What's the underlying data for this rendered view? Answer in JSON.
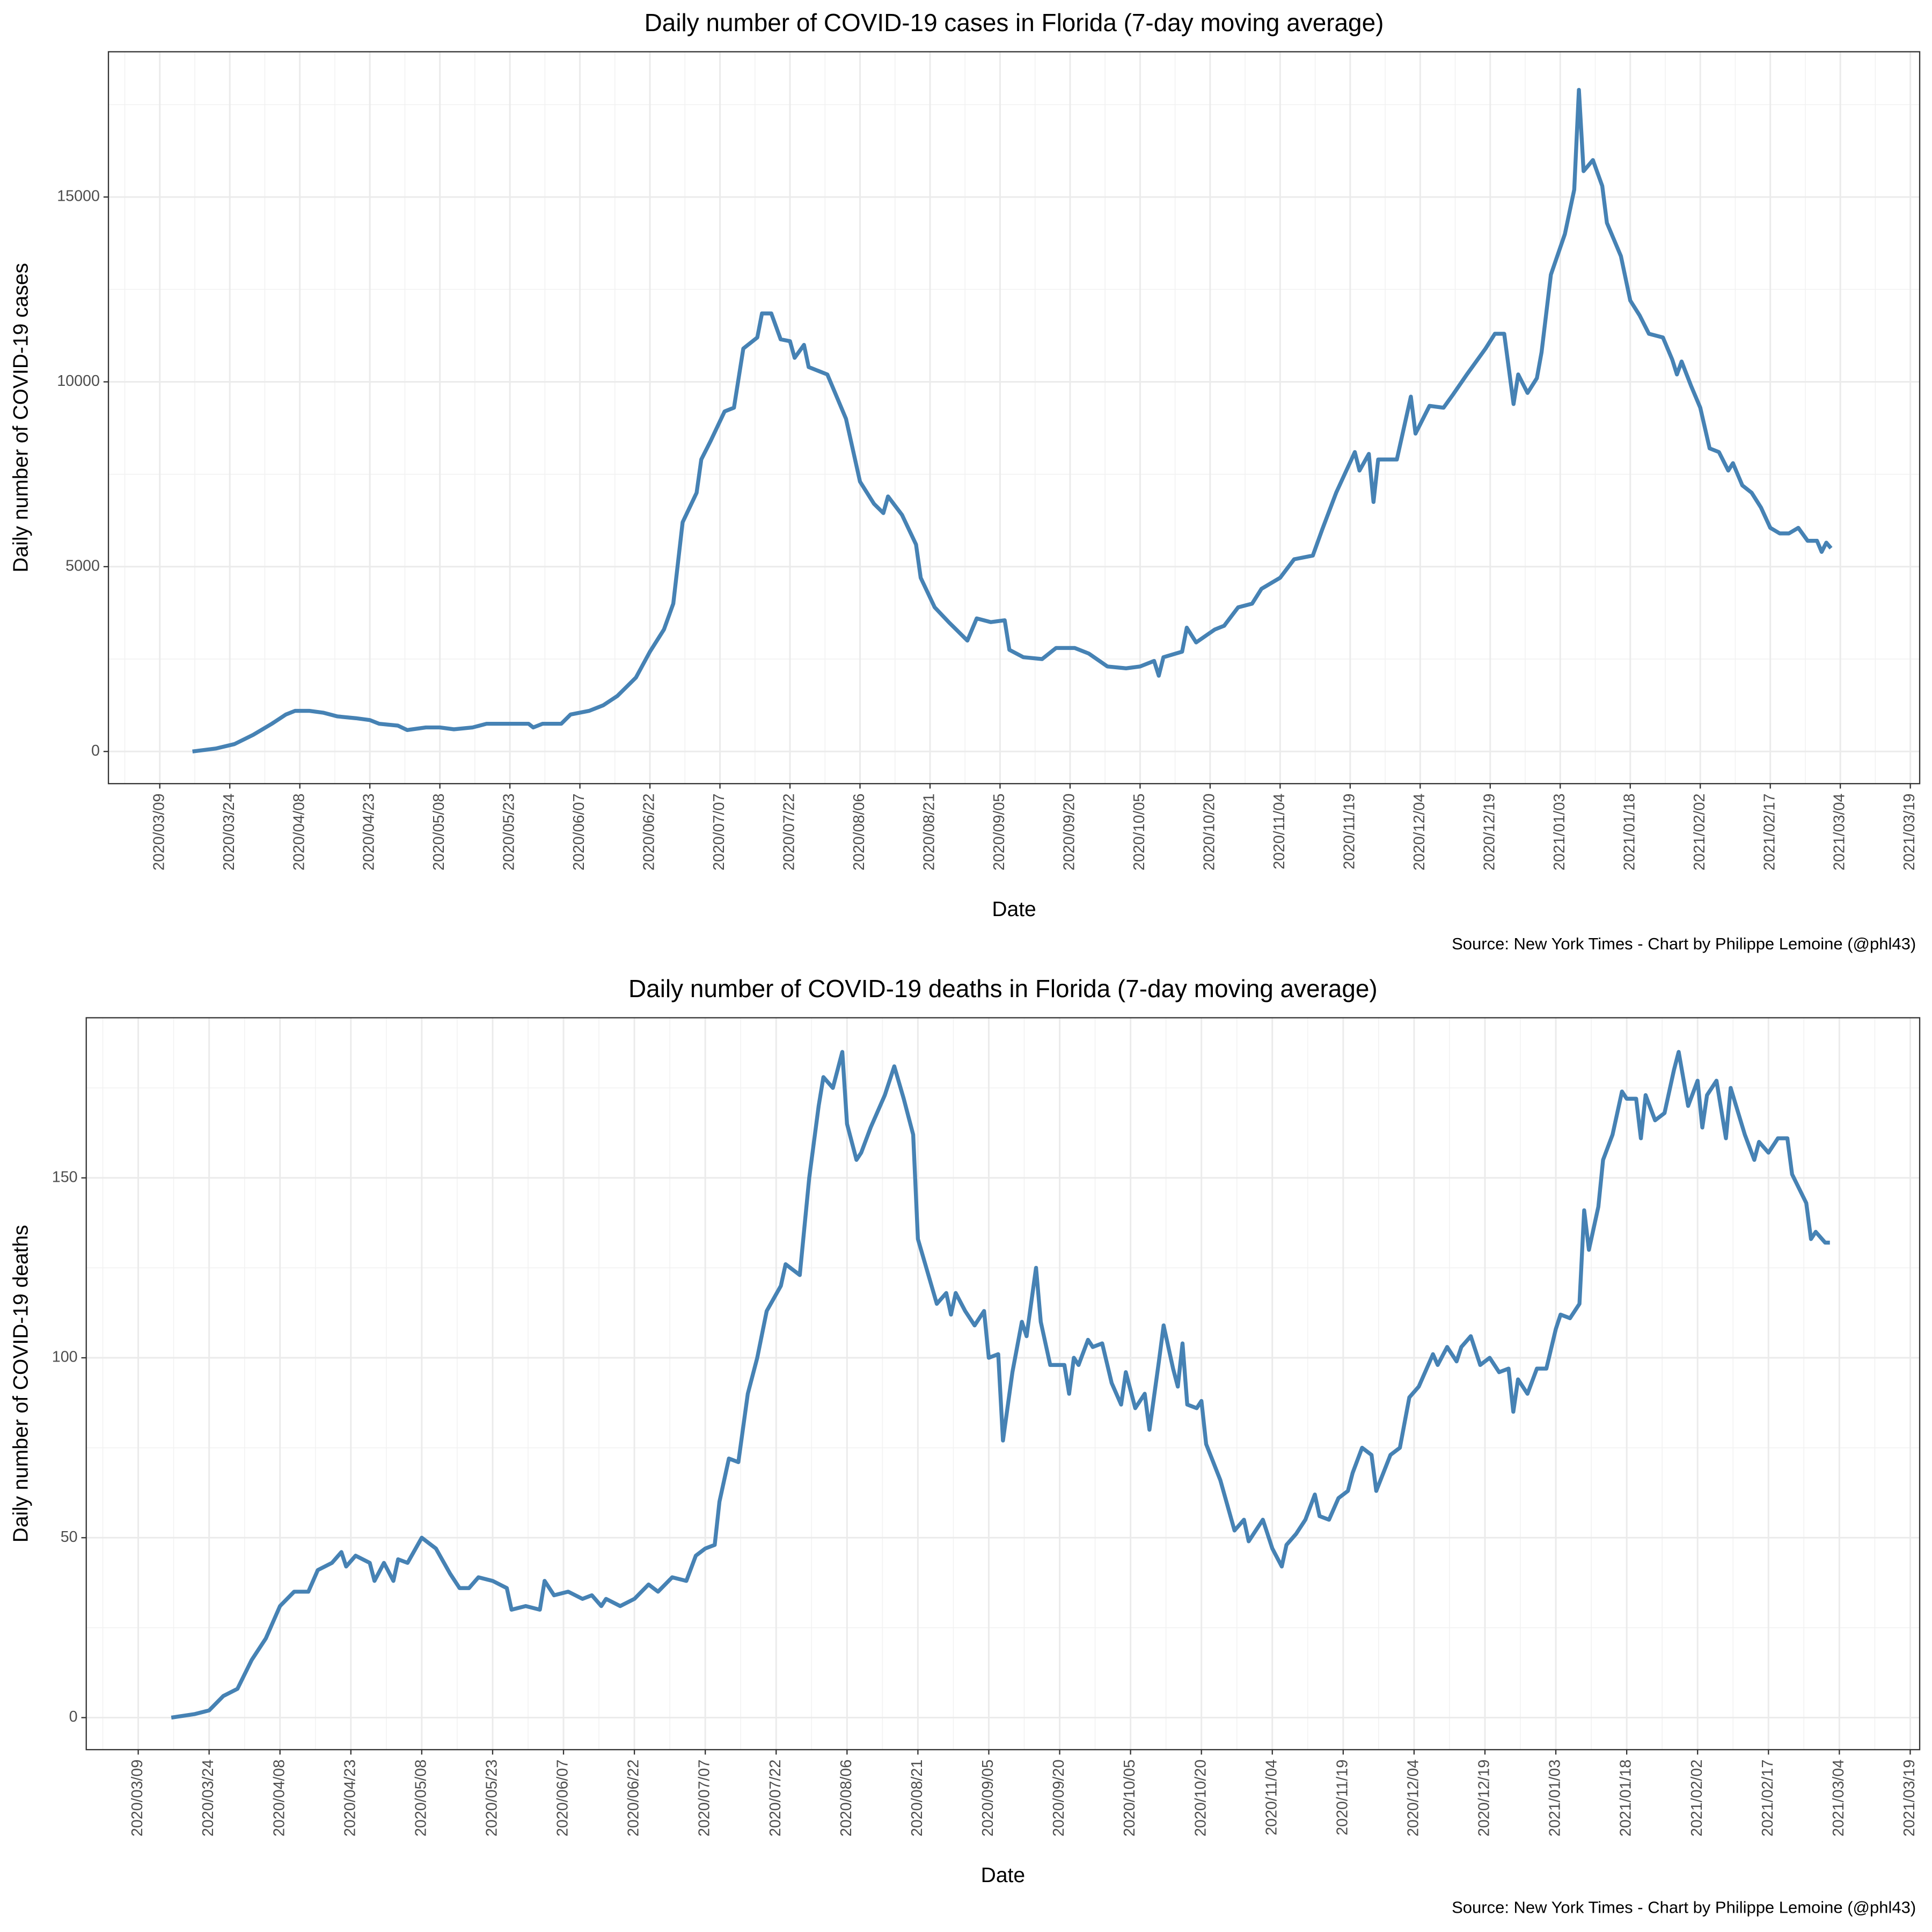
{
  "chart_data": [
    {
      "type": "line",
      "title": "Daily number of COVID-19 cases in Florida (7-day moving average)",
      "x_label": "Date",
      "y_label": "Daily number of COVID-19 cases",
      "source": "Source: New York Times - Chart by Philippe Lemoine (@phl43)",
      "color": "#4682b4",
      "grid": true,
      "xlim": [
        "2020/02/27",
        "2021/03/21"
      ],
      "xticks": [
        "2020/03/09",
        "2020/03/24",
        "2020/04/08",
        "2020/04/23",
        "2020/05/08",
        "2020/05/23",
        "2020/06/07",
        "2020/06/22",
        "2020/07/07",
        "2020/07/22",
        "2020/08/06",
        "2020/08/21",
        "2020/09/05",
        "2020/09/20",
        "2020/10/05",
        "2020/10/20",
        "2020/11/04",
        "2020/11/19",
        "2020/12/04",
        "2020/12/19",
        "2021/01/03",
        "2021/01/18",
        "2021/02/02",
        "2021/02/17",
        "2021/03/04",
        "2021/03/19"
      ],
      "ylim": [
        -870,
        18930
      ],
      "yticks": [
        0,
        5000,
        10000,
        15000
      ],
      "x": [
        "2020/03/16",
        "2020/03/21",
        "2020/03/25",
        "2020/03/29",
        "2020/04/02",
        "2020/04/05",
        "2020/04/07",
        "2020/04/10",
        "2020/04/13",
        "2020/04/16",
        "2020/04/20",
        "2020/04/23",
        "2020/04/25",
        "2020/04/29",
        "2020/05/01",
        "2020/05/05",
        "2020/05/08",
        "2020/05/11",
        "2020/05/15",
        "2020/05/18",
        "2020/05/22",
        "2020/05/27",
        "2020/05/28",
        "2020/05/30",
        "2020/06/03",
        "2020/06/05",
        "2020/06/09",
        "2020/06/12",
        "2020/06/15",
        "2020/06/19",
        "2020/06/22",
        "2020/06/25",
        "2020/06/27",
        "2020/06/29",
        "2020/07/02",
        "2020/07/03",
        "2020/07/05",
        "2020/07/08",
        "2020/07/10",
        "2020/07/12",
        "2020/07/15",
        "2020/07/16",
        "2020/07/18",
        "2020/07/20",
        "2020/07/22",
        "2020/07/23",
        "2020/07/25",
        "2020/07/26",
        "2020/07/30",
        "2020/08/03",
        "2020/08/06",
        "2020/08/09",
        "2020/08/11",
        "2020/08/12",
        "2020/08/15",
        "2020/08/18",
        "2020/08/19",
        "2020/08/22",
        "2020/08/25",
        "2020/08/29",
        "2020/08/31",
        "2020/09/03",
        "2020/09/06",
        "2020/09/07",
        "2020/09/10",
        "2020/09/14",
        "2020/09/17",
        "2020/09/21",
        "2020/09/24",
        "2020/09/28",
        "2020/10/02",
        "2020/10/05",
        "2020/10/08",
        "2020/10/09",
        "2020/10/10",
        "2020/10/14",
        "2020/10/15",
        "2020/10/17",
        "2020/10/21",
        "2020/10/23",
        "2020/10/26",
        "2020/10/29",
        "2020/10/31",
        "2020/11/04",
        "2020/11/07",
        "2020/11/11",
        "2020/11/13",
        "2020/11/16",
        "2020/11/20",
        "2020/11/21",
        "2020/11/23",
        "2020/11/24",
        "2020/11/25",
        "2020/11/29",
        "2020/12/02",
        "2020/12/03",
        "2020/12/06",
        "2020/12/09",
        "2020/12/11",
        "2020/12/14",
        "2020/12/18",
        "2020/12/20",
        "2020/12/22",
        "2020/12/24",
        "2020/12/25",
        "2020/12/27",
        "2020/12/29",
        "2020/12/30",
        "2021/01/01",
        "2021/01/04",
        "2021/01/06",
        "2021/01/07",
        "2021/01/08",
        "2021/01/10",
        "2021/01/12",
        "2021/01/13",
        "2021/01/16",
        "2021/01/18",
        "2021/01/20",
        "2021/01/22",
        "2021/01/25",
        "2021/01/27",
        "2021/01/28",
        "2021/01/29",
        "2021/01/31",
        "2021/02/02",
        "2021/02/04",
        "2021/02/06",
        "2021/02/08",
        "2021/02/09",
        "2021/02/11",
        "2021/02/13",
        "2021/02/15",
        "2021/02/17",
        "2021/02/19",
        "2021/02/21",
        "2021/02/23",
        "2021/02/25",
        "2021/02/27",
        "2021/02/28",
        "2021/03/01",
        "2021/03/02"
      ],
      "values": [
        0,
        80,
        200,
        450,
        750,
        1000,
        1100,
        1100,
        1050,
        950,
        900,
        850,
        750,
        700,
        580,
        650,
        650,
        600,
        650,
        750,
        750,
        750,
        650,
        750,
        750,
        1000,
        1100,
        1250,
        1500,
        2000,
        2700,
        3300,
        4000,
        6200,
        7000,
        7900,
        8400,
        9200,
        9300,
        10900,
        11200,
        11850,
        11850,
        11150,
        11100,
        10650,
        11000,
        10400,
        10200,
        9000,
        7300,
        6700,
        6450,
        6900,
        6400,
        5600,
        4700,
        3900,
        3500,
        3000,
        3600,
        3500,
        3550,
        2750,
        2550,
        2500,
        2800,
        2800,
        2650,
        2300,
        2250,
        2300,
        2450,
        2050,
        2550,
        2700,
        3350,
        2950,
        3300,
        3400,
        3900,
        4000,
        4400,
        4700,
        5200,
        5300,
        6000,
        7000,
        8100,
        7600,
        8050,
        6750,
        7900,
        7900,
        9600,
        8600,
        9350,
        9300,
        9650,
        10200,
        10900,
        11300,
        11300,
        9400,
        10200,
        9700,
        10100,
        10800,
        12900,
        14000,
        15200,
        17900,
        15700,
        16000,
        15300,
        14300,
        13400,
        12200,
        11800,
        11300,
        11200,
        10600,
        10200,
        10550,
        9900,
        9300,
        8200,
        8100,
        7600,
        7800,
        7200,
        7000,
        6600,
        6050,
        5900,
        5900,
        6050,
        5700,
        5700,
        5400,
        5650,
        5500
      ]
    },
    {
      "type": "line",
      "title": "Daily number of COVID-19 deaths in Florida (7-day moving average)",
      "x_label": "Date",
      "y_label": "Daily number of COVID-19 deaths",
      "source": "Source: New York Times - Chart by Philippe Lemoine (@phl43)",
      "color": "#4682b4",
      "grid": true,
      "xlim": [
        "2020/02/27",
        "2021/03/21"
      ],
      "xticks": [
        "2020/03/09",
        "2020/03/24",
        "2020/04/08",
        "2020/04/23",
        "2020/05/08",
        "2020/05/23",
        "2020/06/07",
        "2020/06/22",
        "2020/07/07",
        "2020/07/22",
        "2020/08/06",
        "2020/08/21",
        "2020/09/05",
        "2020/09/20",
        "2020/10/05",
        "2020/10/20",
        "2020/11/04",
        "2020/11/19",
        "2020/12/04",
        "2020/12/19",
        "2021/01/03",
        "2021/01/18",
        "2021/02/02",
        "2021/02/17",
        "2021/03/04",
        "2021/03/19"
      ],
      "ylim": [
        -8.9,
        194.5
      ],
      "yticks": [
        0,
        50,
        100,
        150
      ],
      "x": [
        "2020/03/16",
        "2020/03/21",
        "2020/03/24",
        "2020/03/27",
        "2020/03/30",
        "2020/04/02",
        "2020/04/05",
        "2020/04/08",
        "2020/04/11",
        "2020/04/14",
        "2020/04/16",
        "2020/04/19",
        "2020/04/21",
        "2020/04/22",
        "2020/04/24",
        "2020/04/27",
        "2020/04/28",
        "2020/04/30",
        "2020/05/02",
        "2020/05/03",
        "2020/05/05",
        "2020/05/08",
        "2020/05/11",
        "2020/05/14",
        "2020/05/16",
        "2020/05/18",
        "2020/05/20",
        "2020/05/23",
        "2020/05/26",
        "2020/05/27",
        "2020/05/30",
        "2020/06/02",
        "2020/06/03",
        "2020/06/05",
        "2020/06/08",
        "2020/06/11",
        "2020/06/13",
        "2020/06/15",
        "2020/06/16",
        "2020/06/19",
        "2020/06/22",
        "2020/06/25",
        "2020/06/27",
        "2020/06/30",
        "2020/07/03",
        "2020/07/05",
        "2020/07/07",
        "2020/07/09",
        "2020/07/10",
        "2020/07/12",
        "2020/07/14",
        "2020/07/16",
        "2020/07/18",
        "2020/07/20",
        "2020/07/23",
        "2020/07/24",
        "2020/07/27",
        "2020/07/29",
        "2020/07/31",
        "2020/08/01",
        "2020/08/03",
        "2020/08/05",
        "2020/08/06",
        "2020/08/08",
        "2020/08/09",
        "2020/08/11",
        "2020/08/14",
        "2020/08/16",
        "2020/08/18",
        "2020/08/20",
        "2020/08/21",
        "2020/08/23",
        "2020/08/25",
        "2020/08/27",
        "2020/08/28",
        "2020/08/29",
        "2020/08/31",
        "2020/09/02",
        "2020/09/04",
        "2020/09/05",
        "2020/09/07",
        "2020/09/08",
        "2020/09/10",
        "2020/09/12",
        "2020/09/13",
        "2020/09/15",
        "2020/09/16",
        "2020/09/18",
        "2020/09/21",
        "2020/09/22",
        "2020/09/23",
        "2020/09/24",
        "2020/09/26",
        "2020/09/27",
        "2020/09/29",
        "2020/10/01",
        "2020/10/03",
        "2020/10/04",
        "2020/10/06",
        "2020/10/08",
        "2020/10/09",
        "2020/10/11",
        "2020/10/12",
        "2020/10/14",
        "2020/10/15",
        "2020/10/16",
        "2020/10/17",
        "2020/10/19",
        "2020/10/20",
        "2020/10/21",
        "2020/10/24",
        "2020/10/27",
        "2020/10/29",
        "2020/10/30",
        "2020/11/02",
        "2020/11/04",
        "2020/11/06",
        "2020/11/07",
        "2020/11/09",
        "2020/11/11",
        "2020/11/13",
        "2020/11/14",
        "2020/11/16",
        "2020/11/18",
        "2020/11/20",
        "2020/11/21",
        "2020/11/23",
        "2020/11/25",
        "2020/11/26",
        "2020/11/29",
        "2020/12/01",
        "2020/12/03",
        "2020/12/05",
        "2020/12/08",
        "2020/12/09",
        "2020/12/11",
        "2020/12/13",
        "2020/12/14",
        "2020/12/16",
        "2020/12/18",
        "2020/12/20",
        "2020/12/22",
        "2020/12/24",
        "2020/12/25",
        "2020/12/26",
        "2020/12/28",
        "2020/12/30",
        "2021/01/01",
        "2021/01/03",
        "2021/01/04",
        "2021/01/06",
        "2021/01/08",
        "2021/01/09",
        "2021/01/10",
        "2021/01/12",
        "2021/01/13",
        "2021/01/15",
        "2021/01/17",
        "2021/01/18",
        "2021/01/20",
        "2021/01/21",
        "2021/01/22",
        "2021/01/24",
        "2021/01/26",
        "2021/01/28",
        "2021/01/29",
        "2021/01/31",
        "2021/02/02",
        "2021/02/03",
        "2021/02/04",
        "2021/02/06",
        "2021/02/08",
        "2021/02/09",
        "2021/02/12",
        "2021/02/14",
        "2021/02/15",
        "2021/02/17",
        "2021/02/19",
        "2021/02/21",
        "2021/02/22",
        "2021/02/25",
        "2021/02/26",
        "2021/02/27",
        "2021/03/01",
        "2021/03/02"
      ],
      "values": [
        0,
        1,
        2,
        6,
        8,
        16,
        22,
        31,
        35,
        35,
        41,
        43,
        46,
        42,
        45,
        43,
        38,
        43,
        38,
        44,
        43,
        50,
        47,
        40,
        36,
        36,
        39,
        38,
        36,
        30,
        31,
        30,
        38,
        34,
        35,
        33,
        34,
        31,
        33,
        31,
        33,
        37,
        35,
        39,
        38,
        45,
        47,
        48,
        60,
        72,
        71,
        90,
        100,
        113,
        120,
        126,
        123,
        150,
        170,
        178,
        175,
        185,
        165,
        155,
        157,
        164,
        173,
        181,
        172,
        162,
        133,
        124,
        115,
        118,
        112,
        118,
        113,
        109,
        113,
        100,
        101,
        77,
        96,
        110,
        106,
        125,
        110,
        98,
        98,
        90,
        100,
        98,
        105,
        103,
        104,
        93,
        87,
        96,
        86,
        90,
        80,
        99,
        109,
        97,
        92,
        104,
        87,
        86,
        88,
        76,
        66,
        52,
        55,
        49,
        55,
        47,
        42,
        48,
        51,
        55,
        62,
        56,
        55,
        61,
        63,
        68,
        75,
        73,
        63,
        73,
        75,
        89,
        92,
        101,
        98,
        103,
        99,
        103,
        106,
        98,
        100,
        96,
        97,
        85,
        94,
        90,
        97,
        97,
        108,
        112,
        111,
        115,
        141,
        130,
        142,
        155,
        162,
        174,
        172,
        172,
        161,
        173,
        166,
        168,
        180,
        185,
        170,
        177,
        164,
        173,
        177,
        161,
        175,
        162,
        155,
        160,
        157,
        161,
        161,
        151,
        143,
        133,
        135,
        132,
        132
      ]
    }
  ]
}
